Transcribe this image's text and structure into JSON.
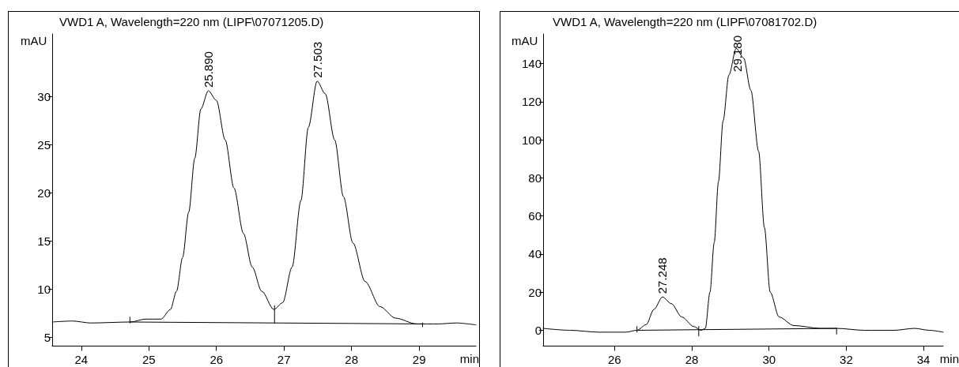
{
  "chart_data": [
    {
      "type": "line",
      "title": "VWD1 A, Wavelength=220 nm (LIPF\\07071205.D)",
      "xlabel": "min",
      "ylabel": "mAU",
      "xlim": [
        23.57,
        29.84
      ],
      "xticks": [
        24,
        25,
        26,
        27,
        28,
        29
      ],
      "ylim": [
        4.1,
        36.5
      ],
      "yticks": [
        5,
        10,
        15,
        20,
        25,
        30
      ],
      "grid": false,
      "marker": "none",
      "line_style": "solid",
      "series": [
        {
          "color": "#000000",
          "x": [
            23.57,
            23.87,
            24.14,
            24.73,
            24.95,
            25.18,
            25.32,
            25.41,
            25.5,
            25.59,
            25.68,
            25.77,
            25.88,
            26.0,
            26.13,
            26.26,
            26.4,
            26.53,
            26.67,
            26.85,
            26.98,
            27.12,
            27.25,
            27.36,
            27.49,
            27.61,
            27.75,
            27.88,
            28.02,
            28.2,
            28.42,
            28.65,
            28.96,
            29.28,
            29.55,
            29.84
          ],
          "values": [
            6.6,
            6.7,
            6.5,
            6.6,
            6.9,
            6.9,
            7.9,
            9.8,
            13.3,
            18.0,
            23.6,
            28.7,
            30.6,
            29.6,
            25.5,
            20.5,
            15.8,
            12.3,
            9.8,
            7.9,
            8.6,
            12.3,
            19.2,
            26.8,
            31.6,
            30.3,
            25.5,
            19.6,
            14.8,
            10.8,
            8.2,
            7.0,
            6.4,
            6.4,
            6.5,
            6.3
          ]
        },
        {
          "color": "#000000",
          "x": [
            24.72,
            29.05
          ],
          "values": [
            6.6,
            6.4
          ]
        },
        {
          "color": "#000000",
          "x": [
            24.72,
            24.72
          ],
          "values": [
            6.5,
            7.1
          ]
        },
        {
          "color": "#000000",
          "x": [
            26.86,
            26.86
          ],
          "values": [
            6.5,
            8.3
          ]
        },
        {
          "color": "#000000",
          "x": [
            29.05,
            29.05
          ],
          "values": [
            6.1,
            6.5
          ]
        }
      ],
      "annotations": [
        {
          "text": "25.890",
          "x": 25.89,
          "y": 30.6
        },
        {
          "text": "27.503",
          "x": 27.503,
          "y": 31.6
        }
      ]
    },
    {
      "type": "line",
      "title": "VWD1 A, Wavelength=220 nm (LIPF\\07081702.D)",
      "xlabel": "min",
      "ylabel": "mAU",
      "xlim": [
        24.15,
        34.51
      ],
      "xticks": [
        26,
        28,
        30,
        32,
        34
      ],
      "ylim": [
        -8.3,
        155.6
      ],
      "yticks": [
        0,
        20,
        40,
        60,
        80,
        100,
        120,
        140
      ],
      "grid": false,
      "marker": "none",
      "line_style": "solid",
      "series": [
        {
          "color": "#000000",
          "x": [
            24.15,
            24.84,
            25.6,
            26.29,
            26.58,
            26.82,
            27.02,
            27.24,
            27.47,
            27.74,
            28.05,
            28.24,
            28.35,
            28.47,
            28.58,
            28.69,
            28.81,
            28.96,
            29.15,
            29.34,
            29.53,
            29.73,
            29.88,
            30.03,
            30.26,
            30.64,
            31.33,
            31.75,
            32.47,
            33.24,
            33.77,
            34.15,
            34.51
          ],
          "values": [
            1,
            0,
            -1,
            -1,
            0,
            3,
            11,
            17.5,
            14,
            7,
            2,
            0,
            1,
            20,
            46,
            78,
            110,
            134,
            148,
            143,
            126,
            94,
            54,
            20,
            7,
            2.5,
            1,
            1,
            0,
            0,
            1,
            0,
            -1
          ]
        },
        {
          "color": "#000000",
          "x": [
            26.58,
            31.75
          ],
          "values": [
            0,
            1
          ]
        },
        {
          "color": "#000000",
          "x": [
            26.58,
            26.58
          ],
          "values": [
            -1,
            2
          ]
        },
        {
          "color": "#000000",
          "x": [
            28.18,
            28.18
          ],
          "values": [
            -3,
            2
          ]
        },
        {
          "color": "#000000",
          "x": [
            31.75,
            31.75
          ],
          "values": [
            -2,
            1
          ]
        }
      ],
      "annotations": [
        {
          "text": "27.248",
          "x": 27.248,
          "y": 17.5
        },
        {
          "text": "29.180",
          "x": 29.18,
          "y": 148
        }
      ]
    }
  ]
}
